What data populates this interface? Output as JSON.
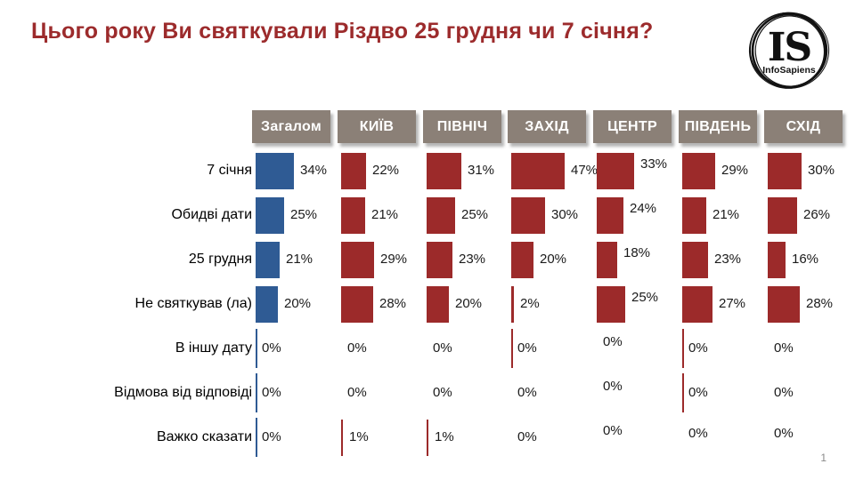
{
  "title": "Цього року Ви святкували Різдво 25 грудня чи 7 січня?",
  "logo": {
    "monogram": "IS",
    "name": "InfoSapiens"
  },
  "page_number": "1",
  "colors": {
    "title_text": "#9c2b2c",
    "bar_overall_blue": "#2f5b94",
    "bar_region_red": "#9c2a2a",
    "header_bg": "#8b8077",
    "header_text": "#ffffff",
    "value_text": "#1a1a1a"
  },
  "chart_data": {
    "type": "bar",
    "orientation": "horizontal, small multiples per region column",
    "title": "Цього року Ви святкували Різдво 25 грудня чи 7 січня?",
    "value_suffix": "%",
    "xlim_percent": [
      0,
      50
    ],
    "categories": [
      "7 січня",
      "Обидві дати",
      "25 грудня",
      "Не святкував (ла)",
      "В іншу дату",
      "Відмова від відповіді",
      "Важко сказати"
    ],
    "series": [
      {
        "name": "Загалом",
        "color": "#2f5b94",
        "values": [
          34,
          25,
          21,
          20,
          0,
          0,
          0
        ]
      },
      {
        "name": "КИЇВ",
        "color": "#9c2a2a",
        "values": [
          22,
          21,
          29,
          28,
          0,
          0,
          1
        ]
      },
      {
        "name": "ПІВНІЧ",
        "color": "#9c2a2a",
        "values": [
          31,
          25,
          23,
          20,
          0,
          0,
          1
        ]
      },
      {
        "name": "ЗАХІД",
        "color": "#9c2a2a",
        "values": [
          47,
          30,
          20,
          2,
          0,
          0,
          0
        ]
      },
      {
        "name": "ЦЕНТР",
        "color": "#9c2a2a",
        "values": [
          33,
          24,
          18,
          25,
          0,
          0,
          0
        ]
      },
      {
        "name": "ПІВДЕНЬ",
        "color": "#9c2a2a",
        "values": [
          29,
          21,
          23,
          27,
          0,
          0,
          0
        ]
      },
      {
        "name": "СХІД",
        "color": "#9c2a2a",
        "values": [
          30,
          26,
          16,
          28,
          0,
          0,
          0
        ]
      }
    ],
    "axis_tick_marks": [
      {
        "col": 0,
        "rows": [
          4,
          5,
          6
        ]
      },
      {
        "col": 3,
        "rows": [
          4
        ]
      },
      {
        "col": 5,
        "rows": [
          4,
          5
        ]
      }
    ],
    "legend_position": "none",
    "grid": false
  }
}
